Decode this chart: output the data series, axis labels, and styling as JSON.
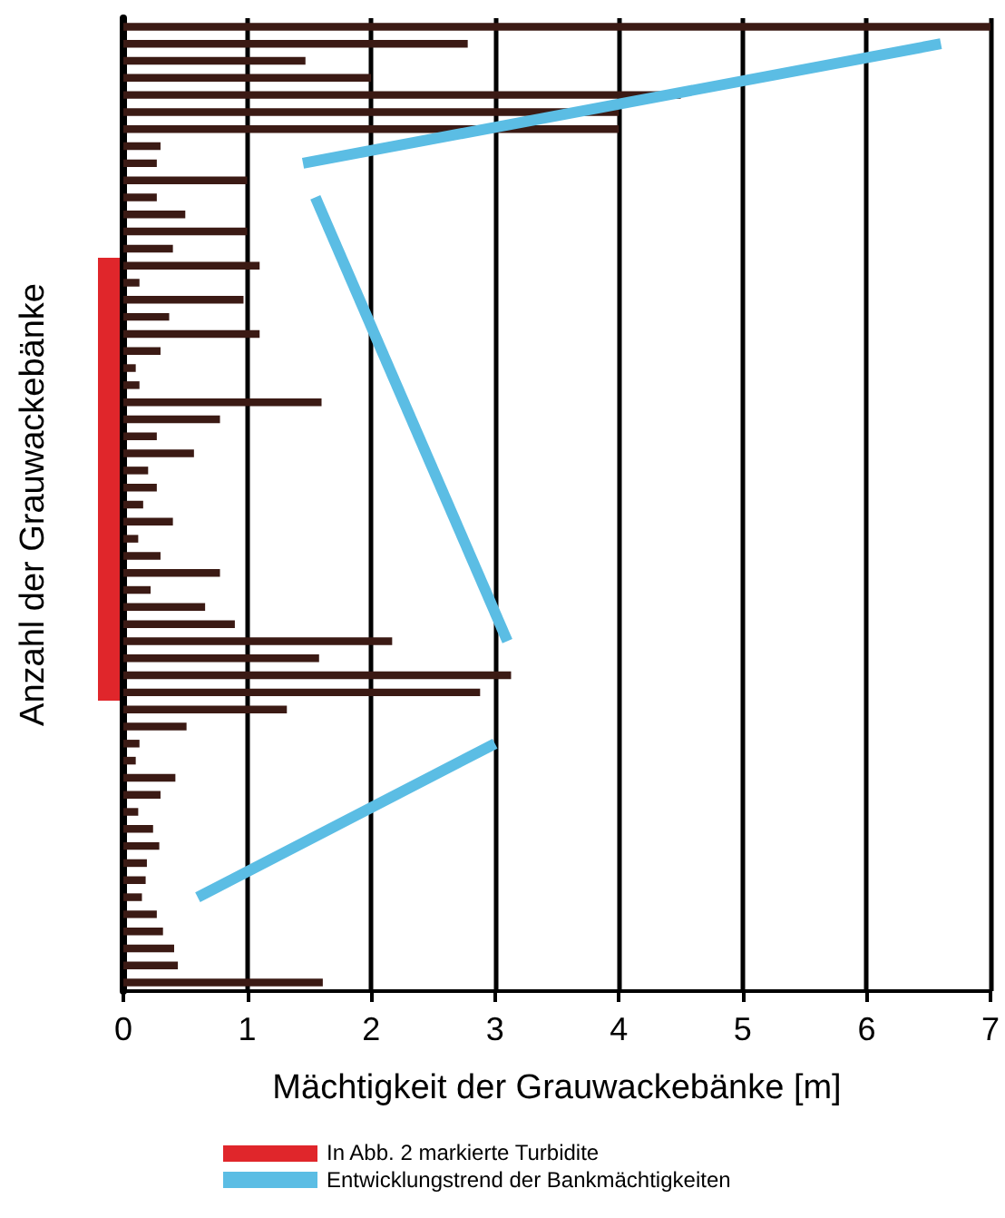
{
  "chart_data": {
    "type": "bar",
    "orientation": "horizontal",
    "xlabel": "Mächtigkeit der Grauwackebänke [m]",
    "ylabel": "Anzahl der Grauwackebänke",
    "categories": [
      null,
      null,
      null,
      null,
      null,
      null,
      null,
      null,
      null,
      null,
      null,
      null,
      null,
      null,
      null,
      null,
      null,
      null,
      null,
      null,
      null,
      null,
      null,
      null,
      null,
      null,
      null,
      null,
      null,
      null,
      null,
      null,
      null,
      null,
      null,
      null,
      null,
      null,
      null,
      null,
      null,
      null,
      null,
      null,
      null,
      null,
      null,
      null,
      null,
      null,
      null,
      null,
      null,
      null,
      null,
      null,
      null
    ],
    "series": [
      {
        "color": "#3b1a14",
        "values": [
          7.0,
          2.78,
          1.47,
          2.0,
          4.5,
          4.0,
          4.0,
          0.3,
          0.27,
          1.0,
          0.27,
          0.5,
          1.0,
          0.4,
          1.1,
          0.13,
          0.97,
          0.37,
          1.1,
          0.3,
          0.1,
          0.13,
          1.6,
          0.78,
          0.27,
          0.57,
          0.2,
          0.27,
          0.16,
          0.4,
          0.12,
          0.3,
          0.78,
          0.22,
          0.66,
          0.9,
          2.17,
          1.58,
          3.13,
          2.88,
          1.32,
          0.51,
          0.13,
          0.1,
          0.42,
          0.3,
          0.12,
          0.24,
          0.29,
          0.19,
          0.18,
          0.15,
          0.27,
          0.32,
          0.41,
          0.44,
          1.61
        ]
      },
      {
        "type": "line",
        "name": "Entwicklungstrend der Bankmächtigkeiten",
        "color": "#5bbde4",
        "values": [
          null,
          6.6,
          null,
          null,
          null,
          null,
          null,
          null,
          1.45,
          null,
          null,
          null,
          null,
          null,
          null,
          null,
          null,
          null,
          null,
          null,
          null,
          null,
          null,
          null,
          null,
          null,
          null,
          null,
          null,
          null,
          null,
          null,
          null,
          null,
          null,
          null,
          null,
          null,
          null,
          null,
          null,
          null,
          null,
          null,
          null,
          null,
          null,
          null,
          null,
          null,
          null,
          null,
          null,
          null,
          null,
          null,
          null
        ]
      },
      {
        "type": "line",
        "color": "#5bbde4",
        "values": [
          null,
          null,
          null,
          null,
          null,
          null,
          null,
          null,
          null,
          null,
          1.55,
          null,
          null,
          null,
          null,
          null,
          null,
          null,
          null,
          null,
          null,
          null,
          null,
          null,
          null,
          null,
          null,
          null,
          null,
          null,
          null,
          null,
          null,
          null,
          null,
          null,
          3.1,
          null,
          null,
          null,
          null,
          null,
          null,
          null,
          null,
          null,
          null,
          null,
          null,
          null,
          null,
          null,
          null,
          null,
          null,
          null,
          null
        ]
      },
      {
        "type": "line",
        "color": "#5bbde4",
        "values": [
          null,
          null,
          null,
          null,
          null,
          null,
          null,
          null,
          null,
          null,
          null,
          null,
          null,
          null,
          null,
          null,
          null,
          null,
          null,
          null,
          null,
          null,
          null,
          null,
          null,
          null,
          null,
          null,
          null,
          null,
          null,
          null,
          null,
          null,
          null,
          null,
          null,
          null,
          null,
          null,
          null,
          null,
          3.0,
          null,
          null,
          null,
          null,
          null,
          null,
          null,
          null,
          0.6,
          null,
          null,
          null,
          null,
          null
        ]
      }
    ],
    "annotations": [
      "In Abb. 2 markierte Turbidite"
    ],
    "xlim": [
      0,
      7
    ],
    "xticks": [
      0,
      1,
      2,
      3,
      4,
      5,
      6,
      7
    ],
    "grid": "x",
    "legend": "bottom",
    "tick_labels": "x",
    "marker": "none"
  }
}
